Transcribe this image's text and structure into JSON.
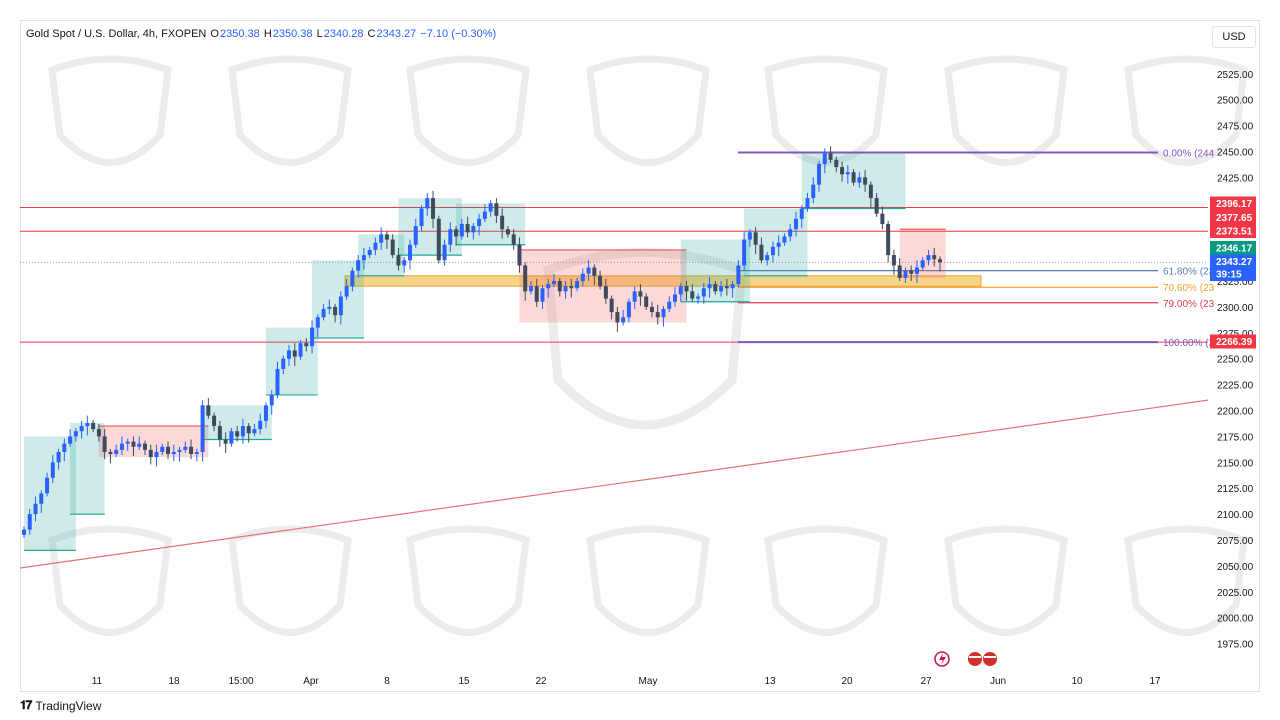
{
  "header": {
    "symbol": "Gold Spot / U.S. Dollar, 4h, FXOPEN",
    "open_label": "O",
    "open": "2350.38",
    "high_label": "H",
    "high": "2350.38",
    "low_label": "L",
    "low": "2340.28",
    "close_label": "C",
    "close": "2343.27",
    "change": "−7.10 (−0.30%)"
  },
  "currency_button": "USD",
  "footer": {
    "logo_text": "TradingView"
  },
  "colors": {
    "up_candle": "#2962ff",
    "resistance_line": "#f23645",
    "fib_top": "#7e57c2",
    "zone_fill": "#f5c25a",
    "trendline": "#e57373",
    "price_tag_bg": "#2962ff",
    "up_tag_bg": "#089981",
    "down_tag_bg": "#f23645"
  },
  "chart_data": {
    "type": "candlestick",
    "instrument": "Gold Spot / U.S. Dollar",
    "timeframe": "4h",
    "y_axis": {
      "ylim": [
        1950,
        2550
      ],
      "ticks": [
        "1975.00",
        "2000.00",
        "2025.00",
        "2050.00",
        "2075.00",
        "2100.00",
        "2125.00",
        "2150.00",
        "2175.00",
        "2200.00",
        "2225.00",
        "2250.00",
        "2275.00",
        "2300.00",
        "2325.00",
        "2350.00",
        "2375.00",
        "2400.00",
        "2425.00",
        "2450.00",
        "2475.00",
        "2500.00",
        "2525.00"
      ]
    },
    "x_axis": {
      "ticks": [
        "11",
        "18",
        "15:00",
        "Apr",
        "8",
        "15",
        "22",
        "May",
        "13",
        "20",
        "27",
        "Jun",
        "10",
        "17"
      ]
    },
    "price_tags": [
      {
        "value": "2396.17",
        "kind": "down"
      },
      {
        "value": "2377.65",
        "kind": "down"
      },
      {
        "value": "2373.51",
        "kind": "down"
      },
      {
        "value": "2346.17",
        "kind": "up"
      },
      {
        "value": "2343.27",
        "kind": "current"
      },
      {
        "value": "39:15",
        "kind": "countdown"
      },
      {
        "value": "2266.39",
        "kind": "down"
      }
    ],
    "fibonacci": [
      {
        "label": "0.00% (244",
        "price": 2449
      },
      {
        "label": "61.80% (23",
        "price": 2335
      },
      {
        "label": "70.60% (23",
        "price": 2319
      },
      {
        "label": "79.00% (23",
        "price": 2304
      },
      {
        "label": "100.00% (2",
        "price": 2266
      }
    ],
    "horizontal_lines": [
      2396,
      2373,
      2266
    ],
    "demand_zone": [
      2320,
      2330
    ],
    "trendline_start": 2048,
    "trendline_end": 2210,
    "closes": [
      2085,
      2100,
      2110,
      2120,
      2135,
      2150,
      2160,
      2168,
      2175,
      2180,
      2185,
      2188,
      2182,
      2175,
      2160,
      2158,
      2162,
      2168,
      2170,
      2165,
      2168,
      2162,
      2155,
      2160,
      2165,
      2158,
      2160,
      2162,
      2165,
      2158,
      2160,
      2205,
      2195,
      2185,
      2172,
      2168,
      2180,
      2175,
      2185,
      2178,
      2182,
      2190,
      2205,
      2215,
      2240,
      2250,
      2258,
      2252,
      2265,
      2262,
      2280,
      2290,
      2298,
      2300,
      2292,
      2310,
      2320,
      2335,
      2345,
      2350,
      2355,
      2362,
      2370,
      2365,
      2350,
      2340,
      2345,
      2360,
      2378,
      2395,
      2405,
      2385,
      2345,
      2360,
      2375,
      2368,
      2380,
      2372,
      2378,
      2385,
      2392,
      2400,
      2388,
      2375,
      2370,
      2360,
      2340,
      2315,
      2320,
      2305,
      2318,
      2322,
      2325,
      2315,
      2320,
      2318,
      2325,
      2332,
      2338,
      2330,
      2320,
      2308,
      2295,
      2285,
      2290,
      2305,
      2315,
      2310,
      2300,
      2295,
      2290,
      2298,
      2305,
      2312,
      2320,
      2315,
      2308,
      2310,
      2318,
      2322,
      2315,
      2320,
      2318,
      2322,
      2340,
      2365,
      2372,
      2360,
      2345,
      2350,
      2358,
      2362,
      2368,
      2375,
      2385,
      2395,
      2405,
      2418,
      2438,
      2448,
      2442,
      2435,
      2428,
      2430,
      2420,
      2425,
      2418,
      2405,
      2390,
      2380,
      2350,
      2340,
      2328,
      2335,
      2332,
      2338,
      2345,
      2350,
      2346,
      2343
    ],
    "trail_stop": [
      {
        "from": 0,
        "to": 8,
        "level": 2065,
        "side": "support"
      },
      {
        "from": 8,
        "to": 13,
        "level": 2100,
        "side": "support"
      },
      {
        "from": 13,
        "to": 31,
        "level": 2185,
        "side": "resistance"
      },
      {
        "from": 31,
        "to": 42,
        "level": 2172,
        "side": "support"
      },
      {
        "from": 42,
        "to": 50,
        "level": 2215,
        "side": "support"
      },
      {
        "from": 50,
        "to": 58,
        "level": 2270,
        "side": "support"
      },
      {
        "from": 58,
        "to": 65,
        "level": 2330,
        "side": "support"
      },
      {
        "from": 65,
        "to": 75,
        "level": 2350,
        "side": "support"
      },
      {
        "from": 75,
        "to": 86,
        "level": 2360,
        "side": "support"
      },
      {
        "from": 86,
        "to": 114,
        "level": 2355,
        "side": "resistance"
      },
      {
        "from": 114,
        "to": 125,
        "level": 2305,
        "side": "support"
      },
      {
        "from": 125,
        "to": 135,
        "level": 2330,
        "side": "support"
      },
      {
        "from": 135,
        "to": 152,
        "level": 2395,
        "side": "support"
      },
      {
        "from": 152,
        "to": 164,
        "level": 2375,
        "side": "resistance"
      }
    ]
  }
}
